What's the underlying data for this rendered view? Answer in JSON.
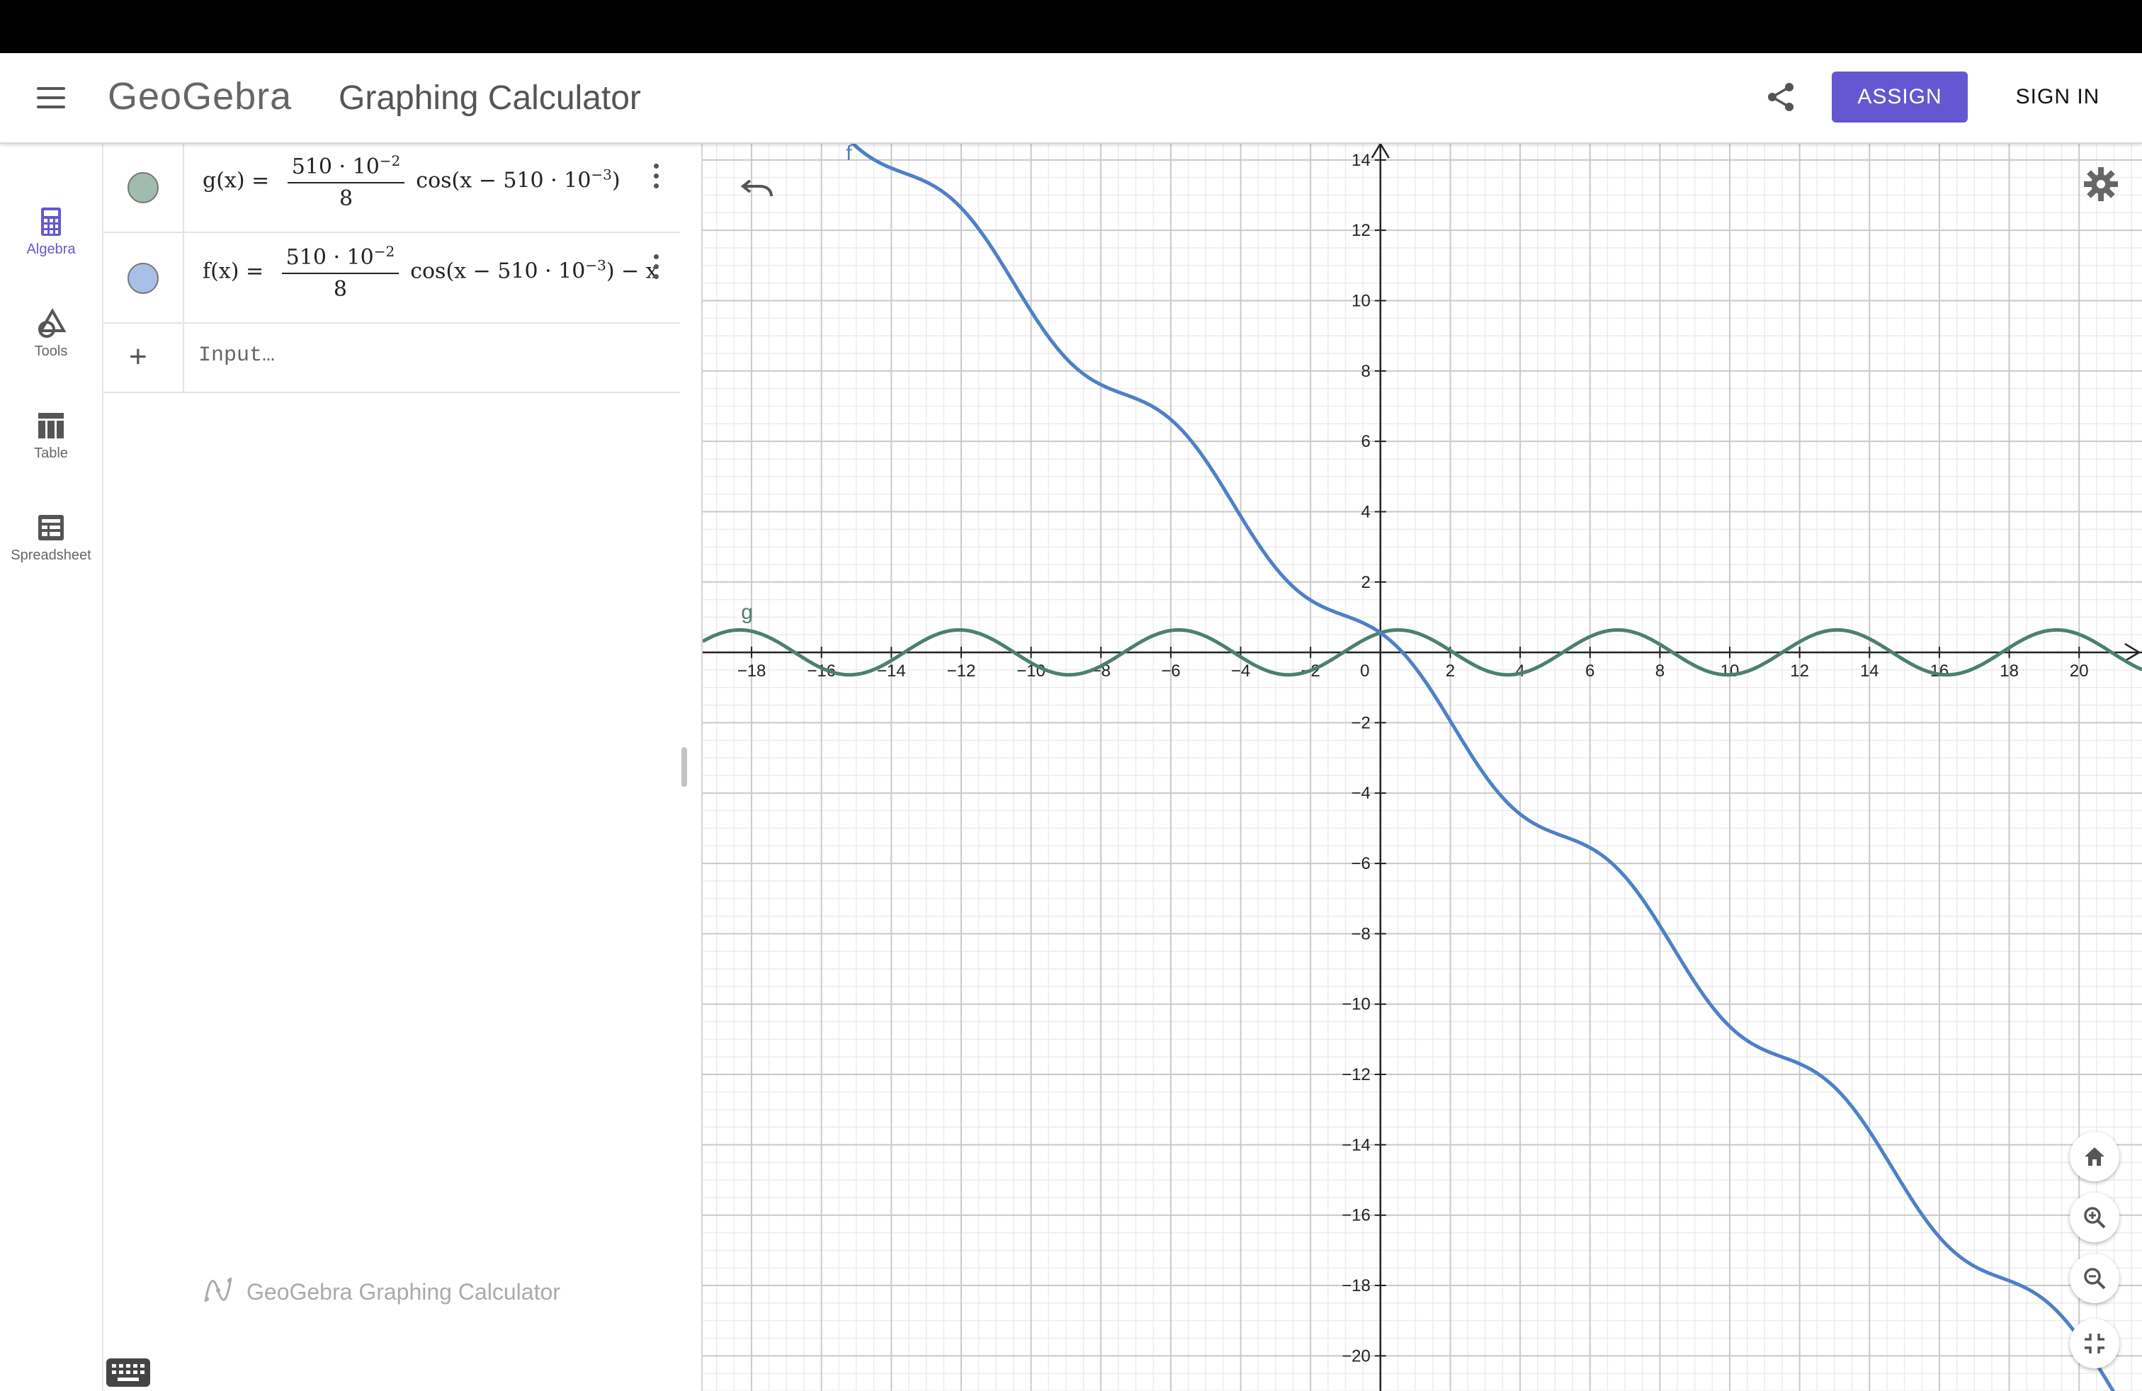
{
  "header": {
    "logo_text": "GeoGebra",
    "title": "Graphing Calculator",
    "assign_label": "ASSIGN",
    "signin_label": "SIGN IN"
  },
  "nav": [
    {
      "label": "Algebra",
      "icon": "calculator-icon",
      "active": true
    },
    {
      "label": "Tools",
      "icon": "shapes-icon",
      "active": false
    },
    {
      "label": "Table",
      "icon": "table-icon",
      "active": false
    },
    {
      "label": "Spreadsheet",
      "icon": "spreadsheet-icon",
      "active": false
    }
  ],
  "algebra": {
    "items": [
      {
        "name": "g(x)",
        "numerator": "510 · 10",
        "num_exp": "−2",
        "denominator": "8",
        "tail_pre": "cos(x − 510 · 10",
        "tail_exp": "−3",
        "tail_post": ")",
        "color": "#4c7f71"
      },
      {
        "name": "f(x)",
        "numerator": "510 · 10",
        "num_exp": "−2",
        "denominator": "8",
        "tail_pre": "cos(x − 510 · 10",
        "tail_exp": "−3",
        "tail_post": ") − x",
        "color": "#4f7fc7"
      }
    ],
    "input_placeholder": "Input…",
    "footer_brand": "GeoGebra Graphing Calculator"
  },
  "graph": {
    "xlim": [
      -19.4,
      21.8
    ],
    "ylim": [
      -21.0,
      14.5
    ],
    "x_ticks": [
      -18,
      -16,
      -14,
      -12,
      -10,
      -8,
      -6,
      -4,
      -2,
      0,
      2,
      4,
      6,
      8,
      10,
      12,
      14,
      16,
      18,
      20
    ],
    "y_ticks": [
      -20,
      -18,
      -16,
      -14,
      -12,
      -10,
      -8,
      -6,
      -4,
      -2,
      2,
      4,
      6,
      8,
      10,
      12,
      14
    ],
    "curves": [
      {
        "label": "g",
        "amplitude": 0.6375,
        "shift": 0.51,
        "linear": 0,
        "color": "#4c7f71"
      },
      {
        "label": "f",
        "amplitude": 0.6375,
        "shift": 0.51,
        "linear": -1,
        "color": "#4f7fc7"
      }
    ]
  }
}
